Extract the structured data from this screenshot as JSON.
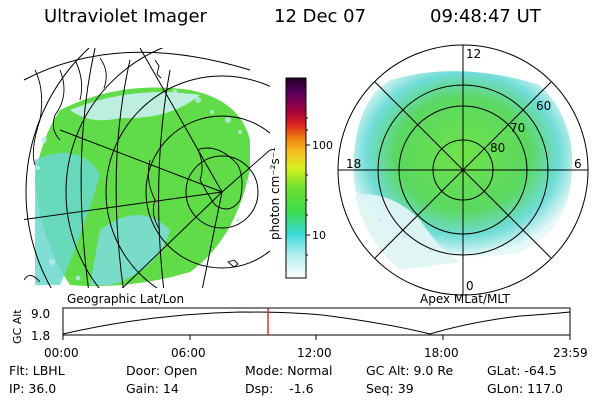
{
  "header": {
    "instrument": "Ultraviolet Imager",
    "date": "12 Dec 07",
    "time": "09:48:47 UT"
  },
  "colorbar": {
    "unit_label": "photon cm⁻²s⁻¹",
    "ticks": [
      "100",
      "10"
    ]
  },
  "geo_panel": {
    "caption": "Geographic Lat/Lon"
  },
  "polar_panel": {
    "caption": "Apex MLat/MLT",
    "mlt_labels": {
      "top": "12",
      "left": "18",
      "right": "6",
      "bottom": "0"
    },
    "lat_labels": [
      "60",
      "70",
      "80"
    ]
  },
  "altitude_plot": {
    "ylabel": "GC Alt",
    "yticks": [
      "9.0",
      "1.8"
    ],
    "xticks": [
      "00:00",
      "06:00",
      "12:00",
      "18:00",
      "23:59"
    ],
    "current_time_marker": "09:48:47"
  },
  "info": {
    "filter": "Flt: LBHL",
    "ip": "IP: 36.0",
    "door": "Door: Open",
    "gain": "Gain: 14",
    "mode": "Mode: Normal",
    "dsp": "Dsp:    -1.6",
    "gcalt": "GC Alt: 9.0 Re",
    "seq": "Seq: 39",
    "glat": "GLat: -64.5",
    "glon": "GLon: 117.0"
  },
  "colors": {
    "aurora_green": "#5fdc3c",
    "aurora_cyan": "#5fd8e8",
    "marker_red": "#e00000"
  }
}
